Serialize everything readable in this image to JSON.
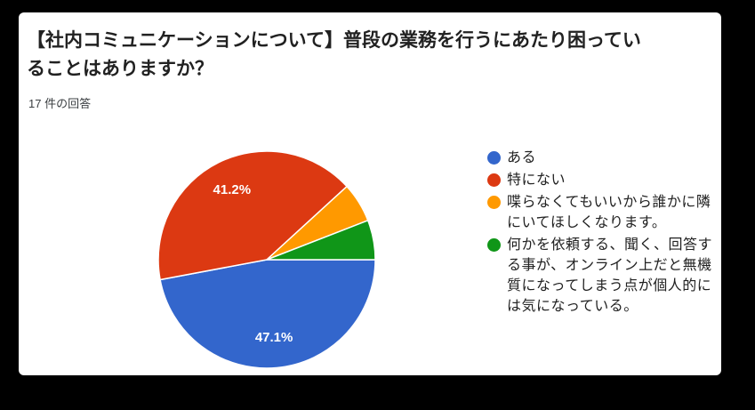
{
  "page": {
    "background_color": "#000000",
    "card_background_color": "#ffffff",
    "title_text_color": "#212121",
    "subtitle_text_color": "#3c4043"
  },
  "header": {
    "title": "【社内コミュニケーションについて】普段の業務を行うにあたり困っていることはありますか？",
    "response_count": "17 件の回答"
  },
  "chart_data": {
    "type": "pie",
    "title": "【社内コミュニケーションについて】普段の業務を行うにあたり困っていることはありますか？",
    "subtitle": "17 件の回答",
    "categories": [
      "ある",
      "特にない",
      "喋らなくてもいいから誰かに隣にいてほしくなります。",
      "何かを依頼する、聞く、回答する事が、オンライン上だと無機質になってしまう点が個人的には気になっている。"
    ],
    "values": [
      47.1,
      41.2,
      5.9,
      5.9
    ],
    "slice_labels": [
      "47.1%",
      "41.2%",
      "",
      ""
    ],
    "colors": [
      "#3366cc",
      "#dc3912",
      "#ff9900",
      "#109618"
    ],
    "slice_border_color": "#ffffff",
    "legend_position": "right",
    "start_angle_deg_from_east": 0,
    "direction": "clockwise",
    "label_radius_fraction": 0.72
  }
}
